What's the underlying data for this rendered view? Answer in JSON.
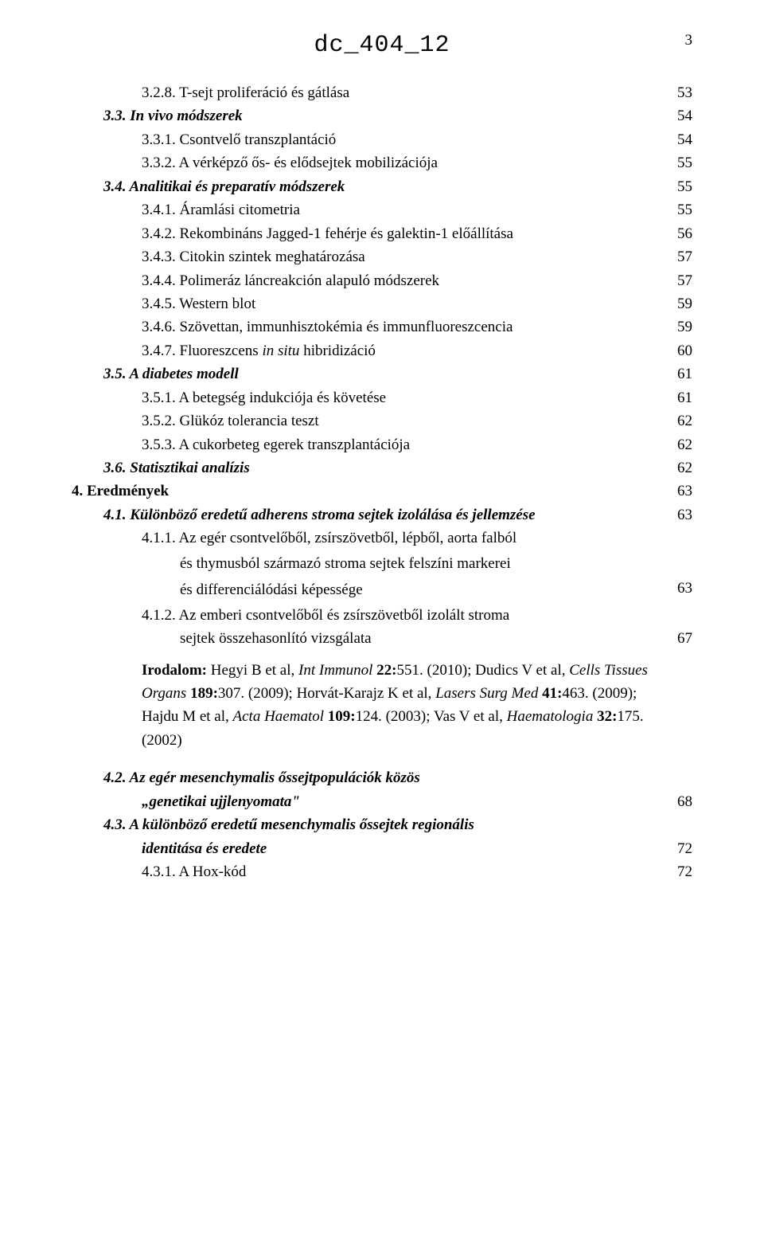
{
  "header": {
    "title": "dc_404_12",
    "page_number": "3"
  },
  "toc": [
    {
      "level": 2,
      "label": "3.2.8. T-sejt proliferáció és gátlása",
      "page": "53"
    },
    {
      "level": 1,
      "label_html": "3.3. <i>In vivo módszerek</i>",
      "page": "54",
      "bolditalic": true
    },
    {
      "level": 2,
      "label": "3.3.1. Csontvelő transzplantáció",
      "page": "54"
    },
    {
      "level": 2,
      "label": "3.3.2. A vérképző ős- és elődsejtek mobilizációja",
      "page": "55"
    },
    {
      "level": 1,
      "label": "3.4. Analitikai és preparatív módszerek",
      "page": "55",
      "bolditalic": true
    },
    {
      "level": 2,
      "label": "3.4.1. Áramlási citometria",
      "page": "55"
    },
    {
      "level": 2,
      "label": "3.4.2. Rekombináns Jagged-1 fehérje és galektin-1 előállítása",
      "page": "56"
    },
    {
      "level": 2,
      "label": "3.4.3. Citokin szintek meghatározása",
      "page": "57"
    },
    {
      "level": 2,
      "label": "3.4.4. Polimeráz láncreakción alapuló módszerek",
      "page": "57"
    },
    {
      "level": 2,
      "label": "3.4.5. Western blot",
      "page": "59"
    },
    {
      "level": 2,
      "label": "3.4.6. Szövettan, immunhisztokémia és immunfluoreszcencia",
      "page": "59"
    },
    {
      "level": 2,
      "label_html": "3.4.7. Fluoreszcens <i>in situ</i> hibridizáció",
      "page": "60"
    },
    {
      "level": 1,
      "label": "3.5. A diabetes modell",
      "page": "61",
      "bolditalic": true
    },
    {
      "level": 2,
      "label": "3.5.1. A betegség indukciója és követése",
      "page": "61"
    },
    {
      "level": 2,
      "label": "3.5.2. Glükóz tolerancia teszt",
      "page": "62"
    },
    {
      "level": 2,
      "label": "3.5.3. A cukorbeteg egerek transzplantációja",
      "page": "62"
    },
    {
      "level": 1,
      "label": "3.6. Statisztikai analízis",
      "page": "62",
      "bolditalic": true
    }
  ],
  "section4": {
    "label": "4. Eredmények",
    "page": "63"
  },
  "sec41": {
    "label": "4.1. Különböző eredetű adherens stroma sejtek izolálása és jellemzése",
    "page": "63"
  },
  "sec411": {
    "head": "4.1.1. Az egér csontvelőből, zsírszövetből, lépből, aorta falból",
    "body1": "és thymusból származó stroma sejtek felszíni markerei",
    "body2": "és differenciálódási képessége",
    "page": "63"
  },
  "sec412": {
    "head": "4.1.2. Az emberi csontvelőből és zsírszövetből izolált stroma",
    "body": "sejtek összehasonlító vizsgálata",
    "page": "67"
  },
  "refs": {
    "text_html": "<b>Irodalom:</b> Hegyi B et al, <i>Int Immunol</i> <b>22:</b>551. (2010); Dudics V et al, <i>Cells Tissues Organs</i> <b>189:</b>307. (2009); Horvát-Karajz K et al, <i>Lasers Surg Med</i> <b>41:</b>463. (2009); Hajdu M et al, <i>Acta Haematol</i> <b>109:</b>124. (2003); Vas V et al, <i>Haematologia</i> <b>32:</b>175. (2002)"
  },
  "sec42": {
    "head": "4.2. Az egér mesenchymalis őssejtpopulációk közös",
    "body": "„genetikai ujjlenyomata\"",
    "page": "68"
  },
  "sec43": {
    "head": "4.3. A különböző eredetű mesenchymalis őssejtek regionális",
    "body": "identitása és eredete",
    "page": "72"
  },
  "sec431": {
    "label": "4.3.1. A Hox-kód",
    "page": "72"
  }
}
